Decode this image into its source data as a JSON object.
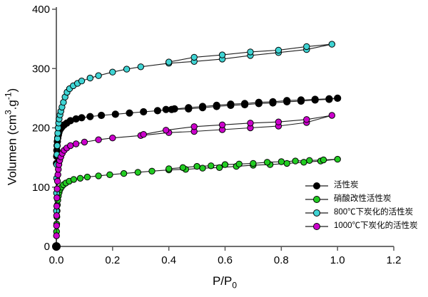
{
  "axes": {
    "x": {
      "title_main": "P/P",
      "title_sub": "0"
    },
    "y": {
      "title_pre": "Volumen (cm",
      "title_sup1": "3",
      "title_mid": ".g",
      "title_sup2": "-1",
      "title_post": ")"
    }
  },
  "colors": {
    "axis": "#595959",
    "series_line": "#1f1f1f",
    "marker_stroke": "#000000"
  },
  "chart_data": {
    "type": "line",
    "subtype": "N2 adsorption-desorption isotherms with hysteresis loops",
    "title": "",
    "xlabel": "P/P0",
    "ylabel": "Volumen (cm3.g-1)",
    "xlim": [
      0,
      1.2
    ],
    "ylim": [
      0,
      400
    ],
    "x_ticks": [
      "0.0",
      "0.2",
      "0.4",
      "0.6",
      "0.8",
      "1.0",
      "1.2"
    ],
    "y_ticks": [
      "0",
      "100",
      "200",
      "300",
      "400"
    ],
    "grid": false,
    "legend_position": "inside-lower-right",
    "series": [
      {
        "name": "活性炭",
        "color": "#000000",
        "marker": "circle",
        "adsorption": [
          [
            0,
            0
          ],
          [
            0.0008,
            140
          ],
          [
            0.0012,
            152
          ],
          [
            0.0018,
            162
          ],
          [
            0.0025,
            170
          ],
          [
            0.0035,
            177
          ],
          [
            0.005,
            183
          ],
          [
            0.007,
            188
          ],
          [
            0.009,
            192
          ],
          [
            0.012,
            196
          ],
          [
            0.016,
            199
          ],
          [
            0.021,
            202
          ],
          [
            0.028,
            205
          ],
          [
            0.037,
            208
          ],
          [
            0.05,
            212
          ],
          [
            0.07,
            215
          ],
          [
            0.09,
            217
          ],
          [
            0.12,
            219
          ],
          [
            0.16,
            221
          ],
          [
            0.21,
            223
          ],
          [
            0.26,
            225
          ],
          [
            0.31,
            227
          ],
          [
            0.36,
            229
          ],
          [
            0.41,
            231
          ],
          [
            0.47,
            232
          ],
          [
            0.52,
            234
          ],
          [
            0.57,
            236
          ],
          [
            0.62,
            238
          ],
          [
            0.67,
            239
          ],
          [
            0.72,
            241
          ],
          [
            0.77,
            242
          ],
          [
            0.82,
            244
          ],
          [
            0.87,
            245
          ],
          [
            0.92,
            247
          ],
          [
            0.97,
            248
          ],
          [
            1.0,
            250
          ]
        ],
        "desorption": [
          [
            0.97,
            249
          ],
          [
            0.92,
            248
          ],
          [
            0.87,
            247
          ],
          [
            0.82,
            246
          ],
          [
            0.77,
            244
          ],
          [
            0.72,
            243
          ],
          [
            0.67,
            241
          ],
          [
            0.62,
            240
          ],
          [
            0.57,
            238
          ],
          [
            0.52,
            236
          ],
          [
            0.47,
            234
          ],
          [
            0.42,
            232
          ],
          [
            0.39,
            231
          ]
        ]
      },
      {
        "name": "硝酸改性活性炭",
        "color": "#22CC22",
        "marker": "circle",
        "adsorption": [
          [
            0.0008,
            25
          ],
          [
            0.0012,
            38
          ],
          [
            0.0018,
            50
          ],
          [
            0.0026,
            60
          ],
          [
            0.0036,
            70
          ],
          [
            0.005,
            78
          ],
          [
            0.007,
            85
          ],
          [
            0.01,
            91
          ],
          [
            0.013,
            96
          ],
          [
            0.018,
            100
          ],
          [
            0.025,
            104
          ],
          [
            0.034,
            107
          ],
          [
            0.046,
            110
          ],
          [
            0.062,
            113
          ],
          [
            0.085,
            115
          ],
          [
            0.11,
            117
          ],
          [
            0.15,
            119
          ],
          [
            0.19,
            121
          ],
          [
            0.24,
            123
          ],
          [
            0.29,
            125
          ],
          [
            0.34,
            127
          ],
          [
            0.4,
            129
          ],
          [
            0.46,
            130
          ],
          [
            0.52,
            132
          ],
          [
            0.58,
            133
          ],
          [
            0.64,
            135
          ],
          [
            0.7,
            137
          ],
          [
            0.76,
            138
          ],
          [
            0.82,
            140
          ],
          [
            0.88,
            142
          ],
          [
            0.94,
            144
          ],
          [
            1.0,
            147
          ]
        ],
        "desorption": [
          [
            0.95,
            146
          ],
          [
            0.9,
            145
          ],
          [
            0.85,
            144
          ],
          [
            0.8,
            143
          ],
          [
            0.75,
            142
          ],
          [
            0.7,
            140
          ],
          [
            0.65,
            139
          ],
          [
            0.6,
            138
          ],
          [
            0.55,
            136
          ],
          [
            0.5,
            135
          ],
          [
            0.45,
            133
          ],
          [
            0.4,
            131
          ]
        ]
      },
      {
        "name": "800℃下炭化的活性炭",
        "color": "#3FD4D4",
        "marker": "circle",
        "adsorption": [
          [
            0.0004,
            60
          ],
          [
            0.0007,
            90
          ],
          [
            0.001,
            115
          ],
          [
            0.0015,
            138
          ],
          [
            0.002,
            155
          ],
          [
            0.003,
            170
          ],
          [
            0.004,
            182
          ],
          [
            0.005,
            191
          ],
          [
            0.0065,
            200
          ],
          [
            0.008,
            208
          ],
          [
            0.01,
            215
          ],
          [
            0.013,
            222
          ],
          [
            0.016,
            228
          ],
          [
            0.02,
            235
          ],
          [
            0.025,
            243
          ],
          [
            0.031,
            252
          ],
          [
            0.038,
            260
          ],
          [
            0.047,
            266
          ],
          [
            0.06,
            271
          ],
          [
            0.075,
            275
          ],
          [
            0.09,
            279
          ],
          [
            0.12,
            284
          ],
          [
            0.15,
            288
          ],
          [
            0.2,
            294
          ],
          [
            0.25,
            299
          ],
          [
            0.3,
            303
          ],
          [
            0.4,
            309
          ],
          [
            0.49,
            312
          ],
          [
            0.59,
            316
          ],
          [
            0.69,
            322
          ],
          [
            0.79,
            327
          ],
          [
            0.89,
            332
          ],
          [
            0.98,
            341
          ]
        ],
        "desorption": [
          [
            0.89,
            337
          ],
          [
            0.79,
            331
          ],
          [
            0.69,
            328
          ],
          [
            0.59,
            323
          ],
          [
            0.49,
            319
          ],
          [
            0.4,
            311
          ]
        ]
      },
      {
        "name": "1000℃下炭化的活性炭",
        "color": "#CC00CC",
        "marker": "circle",
        "adsorption": [
          [
            0.0004,
            18
          ],
          [
            0.0007,
            35
          ],
          [
            0.001,
            52
          ],
          [
            0.0015,
            68
          ],
          [
            0.002,
            82
          ],
          [
            0.003,
            97
          ],
          [
            0.004,
            110
          ],
          [
            0.0055,
            121
          ],
          [
            0.007,
            130
          ],
          [
            0.009,
            138
          ],
          [
            0.012,
            145
          ],
          [
            0.016,
            151
          ],
          [
            0.021,
            157
          ],
          [
            0.028,
            162
          ],
          [
            0.037,
            166
          ],
          [
            0.05,
            170
          ],
          [
            0.07,
            173
          ],
          [
            0.1,
            176
          ],
          [
            0.15,
            180
          ],
          [
            0.2,
            183
          ],
          [
            0.3,
            187
          ],
          [
            0.4,
            192
          ],
          [
            0.49,
            194
          ],
          [
            0.59,
            197
          ],
          [
            0.69,
            200
          ],
          [
            0.79,
            203
          ],
          [
            0.89,
            209
          ],
          [
            0.98,
            221
          ]
        ],
        "desorption": [
          [
            0.89,
            214
          ],
          [
            0.79,
            210
          ],
          [
            0.69,
            208
          ],
          [
            0.59,
            205
          ],
          [
            0.49,
            202
          ],
          [
            0.39,
            196
          ],
          [
            0.31,
            189
          ]
        ]
      }
    ]
  }
}
